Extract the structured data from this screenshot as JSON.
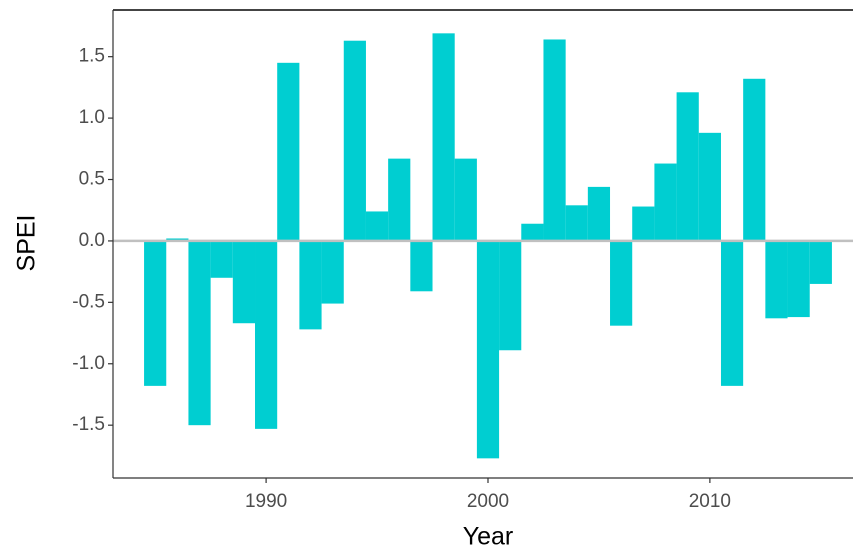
{
  "chart_data": {
    "type": "bar",
    "x_label": "Year",
    "y_label": "SPEI",
    "x": [
      1985,
      1986,
      1987,
      1988,
      1989,
      1990,
      1991,
      1992,
      1993,
      1994,
      1995,
      1996,
      1997,
      1998,
      1999,
      2000,
      2001,
      2002,
      2003,
      2004,
      2005,
      2006,
      2007,
      2008,
      2009,
      2010,
      2011,
      2012,
      2013,
      2014,
      2015
    ],
    "values": [
      -1.18,
      0.02,
      -1.5,
      -0.3,
      -0.67,
      -1.53,
      1.45,
      -0.72,
      -0.51,
      1.63,
      0.24,
      0.67,
      -0.41,
      1.69,
      0.67,
      -1.77,
      -0.89,
      0.14,
      1.64,
      0.29,
      0.44,
      -0.69,
      0.28,
      0.63,
      1.21,
      0.88,
      -1.18,
      1.32,
      -0.63,
      -0.62,
      -0.35
    ],
    "color": "#00ced1",
    "xlim": [
      1983.1,
      2016.45
    ],
    "xticks": [
      1990,
      2000,
      2010
    ],
    "ylim": [
      -1.93,
      1.88
    ],
    "yticks": [
      {
        "value": -1.5,
        "label": "-1.5"
      },
      {
        "value": -1,
        "label": "-1.0"
      },
      {
        "value": -0.5,
        "label": "-0.5"
      },
      {
        "value": 0,
        "label": "0.0"
      },
      {
        "value": 0.5,
        "label": "0.5"
      },
      {
        "value": 1,
        "label": "1.0"
      },
      {
        "value": 1.5,
        "label": "1.5"
      }
    ],
    "hline": 0,
    "grid": false
  }
}
